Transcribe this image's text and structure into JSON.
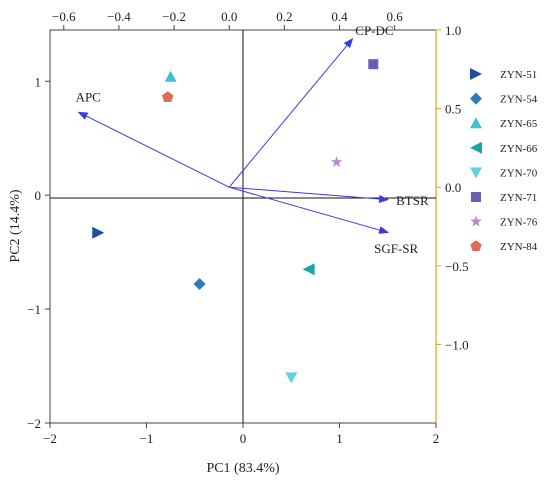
{
  "chart_data": {
    "type": "scatter",
    "subtype": "pca-biplot",
    "xlabel": "PC1 (83.4%)",
    "ylabel": "PC2 (14.4%)",
    "xlim": [
      -2,
      2
    ],
    "ylim": [
      -2,
      1.45
    ],
    "x_ticks": [
      -2,
      -1,
      0,
      1,
      2
    ],
    "x_tick_labels": [
      "−2",
      "−1",
      "0",
      "1",
      "2"
    ],
    "y_ticks": [
      -2,
      -1,
      0,
      1
    ],
    "y_tick_labels": [
      "−2",
      "−1",
      "0",
      "1"
    ],
    "top_axis": {
      "lim": [
        -0.65,
        0.75
      ],
      "ticks": [
        -0.6,
        -0.4,
        -0.2,
        0.0,
        0.2,
        0.4,
        0.6
      ],
      "tick_labels": [
        "−0.6",
        "−0.4",
        "−0.2",
        "0.0",
        "0.2",
        "0.4",
        "0.6"
      ]
    },
    "right_axis": {
      "lim": [
        -1.5,
        1.0
      ],
      "ticks": [
        -1.0,
        -0.5,
        0.0,
        0.5,
        1.0
      ],
      "tick_labels": [
        "−1.0",
        "−0.5",
        "0.0",
        "0.5",
        "1.0"
      ],
      "color": "#e0a020"
    },
    "zero_lines": true,
    "legend_position": "right",
    "series": [
      {
        "name": "ZYN-51",
        "marker": "triangle-right",
        "color": "#1f4e9c",
        "x": -1.5,
        "y": -0.33
      },
      {
        "name": "ZYN-54",
        "marker": "diamond",
        "color": "#2b7bbf",
        "x": -0.45,
        "y": -0.78
      },
      {
        "name": "ZYN-65",
        "marker": "triangle-up",
        "color": "#3ec1d6",
        "x": -0.75,
        "y": 1.04
      },
      {
        "name": "ZYN-66",
        "marker": "triangle-left",
        "color": "#1aa6a6",
        "x": 0.68,
        "y": -0.65
      },
      {
        "name": "ZYN-70",
        "marker": "triangle-down",
        "color": "#5fd3e0",
        "x": 0.5,
        "y": -1.6
      },
      {
        "name": "ZYN-71",
        "marker": "square",
        "color": "#6a5fb5",
        "x": 1.35,
        "y": 1.15
      },
      {
        "name": "ZYN-76",
        "marker": "star",
        "color": "#b88ad6",
        "x": 0.97,
        "y": 0.29
      },
      {
        "name": "ZYN-84",
        "marker": "pentagon",
        "color": "#e06a55",
        "x": -0.78,
        "y": 0.86
      }
    ],
    "loadings": [
      {
        "name": "CP-DC",
        "x": 0.45,
        "y": 0.95
      },
      {
        "name": "APC",
        "x": -0.55,
        "y": 0.48
      },
      {
        "name": "BTSR",
        "x": 0.58,
        "y": -0.08
      },
      {
        "name": "SGF-SR",
        "x": 0.58,
        "y": -0.29
      }
    ],
    "loading_color": "#3b3be0"
  }
}
